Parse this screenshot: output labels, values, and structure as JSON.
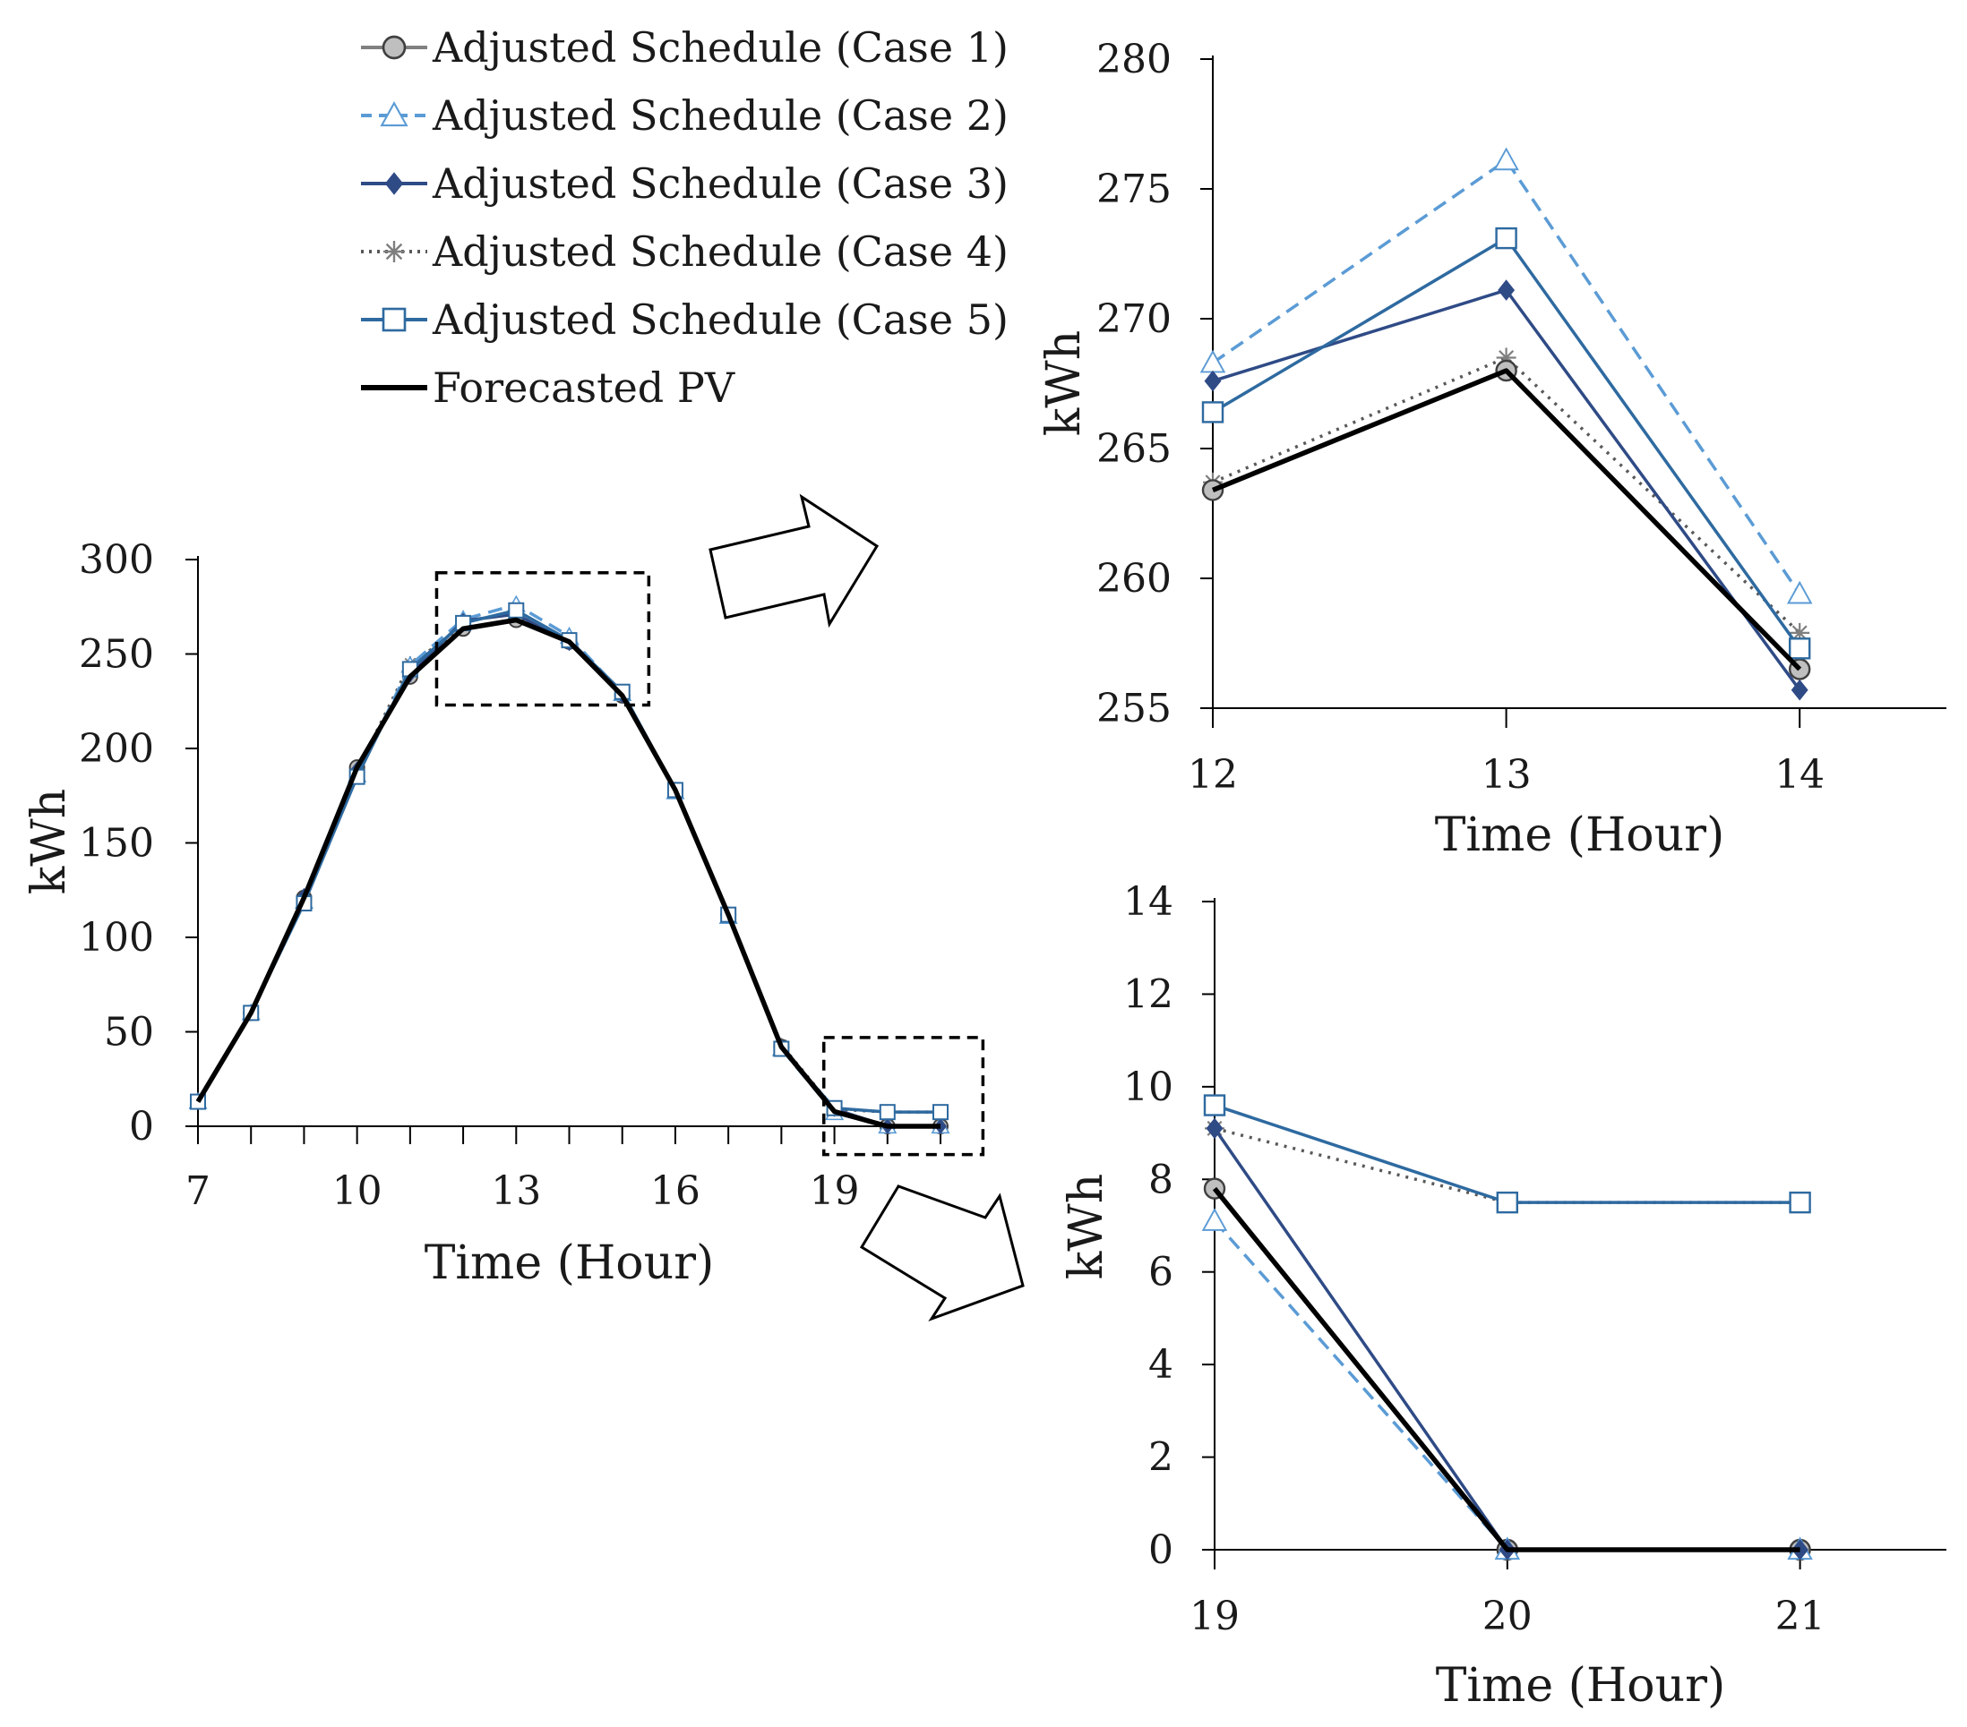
{
  "legend": [
    {
      "key": "case1",
      "label": "Adjusted Schedule (Case 1)"
    },
    {
      "key": "case2",
      "label": "Adjusted Schedule (Case 2)"
    },
    {
      "key": "case3",
      "label": "Adjusted Schedule (Case 3)"
    },
    {
      "key": "case4",
      "label": "Adjusted Schedule (Case 4)"
    },
    {
      "key": "case5",
      "label": "Adjusted Schedule (Case 5)"
    },
    {
      "key": "pv",
      "label": "Forecasted PV"
    }
  ],
  "series_styles": {
    "case1": {
      "color": "#808080",
      "marker": "circle",
      "dash": "none",
      "marker_fill": "#bfbfbf",
      "marker_stroke": "#404040"
    },
    "case2": {
      "color": "#5b9bd5",
      "marker": "triangle",
      "dash": "dashed",
      "marker_fill": "#ffffff",
      "marker_stroke": "#5b9bd5"
    },
    "case3": {
      "color": "#2f4b86",
      "marker": "diamond",
      "dash": "none",
      "marker_fill": "#2f4b86",
      "marker_stroke": "#2f4b86"
    },
    "case4": {
      "color": "#595959",
      "marker": "star",
      "dash": "dotted",
      "marker_fill": "none",
      "marker_stroke": "#7f7f7f"
    },
    "case5": {
      "color": "#2e6aa0",
      "marker": "square",
      "dash": "none",
      "marker_fill": "#ffffff",
      "marker_stroke": "#2e6aa0"
    },
    "pv": {
      "color": "#000000",
      "marker": "none",
      "dash": "none"
    }
  },
  "chart_data": [
    {
      "id": "main",
      "type": "line",
      "xlabel": "Time (Hour)",
      "ylabel": "kWh",
      "xlim": [
        7,
        21
      ],
      "ylim": [
        0,
        300
      ],
      "xticks": [
        7,
        10,
        13,
        16,
        19
      ],
      "yticks": [
        0,
        50,
        100,
        150,
        200,
        250,
        300
      ],
      "x": [
        7,
        8,
        9,
        10,
        11,
        12,
        13,
        14,
        15,
        16,
        17,
        18,
        19,
        20,
        21
      ],
      "series": [
        {
          "key": "case1",
          "name": "Adjusted Schedule (Case 1)",
          "values": [
            13,
            60,
            121,
            190,
            238,
            263.4,
            268,
            256.5,
            228,
            178,
            112,
            42,
            7.8,
            0,
            0
          ]
        },
        {
          "key": "case2",
          "name": "Adjusted Schedule (Case 2)",
          "values": [
            13,
            60,
            119,
            186,
            244,
            268.3,
            276.1,
            259.4,
            229,
            177,
            111,
            41,
            7.1,
            0,
            0
          ]
        },
        {
          "key": "case3",
          "name": "Adjusted Schedule (Case 3)",
          "values": [
            13,
            60,
            122,
            189,
            239,
            267.6,
            271.1,
            255.7,
            228,
            178,
            112,
            42,
            9.1,
            0,
            0
          ]
        },
        {
          "key": "case4",
          "name": "Adjusted Schedule (Case 4)",
          "values": [
            13,
            60,
            120,
            188,
            245,
            263.7,
            268.5,
            257.9,
            229,
            178,
            112,
            43,
            9.1,
            7.5,
            7.5
          ]
        },
        {
          "key": "case5",
          "name": "Adjusted Schedule (Case 5)",
          "values": [
            13,
            60,
            118,
            185,
            242,
            266.4,
            273.1,
            257.3,
            230,
            178,
            112,
            41,
            9.6,
            7.5,
            7.5
          ]
        },
        {
          "key": "pv",
          "name": "Forecasted PV",
          "values": [
            13,
            60,
            121,
            190,
            238,
            263.4,
            268,
            256.5,
            228,
            178,
            112,
            42,
            7.8,
            0,
            0
          ]
        }
      ],
      "zoom_boxes": [
        {
          "x": [
            11.5,
            15.5
          ],
          "y": [
            223,
            293
          ]
        },
        {
          "x": [
            18.8,
            21.8
          ],
          "y": [
            -15,
            47
          ]
        }
      ]
    },
    {
      "id": "zoom_top",
      "type": "line",
      "xlabel": "Time (Hour)",
      "ylabel": "kWh",
      "xlim": [
        12,
        14.5
      ],
      "ylim": [
        255,
        280
      ],
      "xticks": [
        12,
        13,
        14
      ],
      "yticks": [
        255,
        260,
        265,
        270,
        275,
        280
      ],
      "x": [
        12,
        13,
        14
      ],
      "series": [
        {
          "key": "case1",
          "name": "Adjusted Schedule (Case 1)",
          "values": [
            263.4,
            268.0,
            256.5
          ]
        },
        {
          "key": "case2",
          "name": "Adjusted Schedule (Case 2)",
          "values": [
            268.3,
            276.1,
            259.4
          ]
        },
        {
          "key": "case3",
          "name": "Adjusted Schedule (Case 3)",
          "values": [
            267.6,
            271.1,
            255.7
          ]
        },
        {
          "key": "case4",
          "name": "Adjusted Schedule (Case 4)",
          "values": [
            263.7,
            268.5,
            257.9
          ]
        },
        {
          "key": "case5",
          "name": "Adjusted Schedule (Case 5)",
          "values": [
            266.4,
            273.1,
            257.3
          ]
        },
        {
          "key": "pv",
          "name": "Forecasted PV",
          "values": [
            263.4,
            268.0,
            256.5
          ]
        }
      ]
    },
    {
      "id": "zoom_bottom",
      "type": "line",
      "xlabel": "Time (Hour)",
      "ylabel": "kWh",
      "xlim": [
        19,
        21.5
      ],
      "ylim": [
        0,
        14
      ],
      "xticks": [
        19,
        20,
        21
      ],
      "yticks": [
        0,
        2,
        4,
        6,
        8,
        10,
        12,
        14
      ],
      "x": [
        19,
        20,
        21
      ],
      "series": [
        {
          "key": "case1",
          "name": "Adjusted Schedule (Case 1)",
          "values": [
            7.8,
            0,
            0
          ]
        },
        {
          "key": "case2",
          "name": "Adjusted Schedule (Case 2)",
          "values": [
            7.1,
            0,
            0
          ]
        },
        {
          "key": "case3",
          "name": "Adjusted Schedule (Case 3)",
          "values": [
            9.1,
            0,
            0
          ]
        },
        {
          "key": "case4",
          "name": "Adjusted Schedule (Case 4)",
          "values": [
            9.1,
            7.5,
            7.5
          ]
        },
        {
          "key": "case5",
          "name": "Adjusted Schedule (Case 5)",
          "values": [
            9.6,
            7.5,
            7.5
          ]
        },
        {
          "key": "pv",
          "name": "Forecasted PV",
          "values": [
            7.8,
            0,
            0
          ]
        }
      ]
    }
  ]
}
